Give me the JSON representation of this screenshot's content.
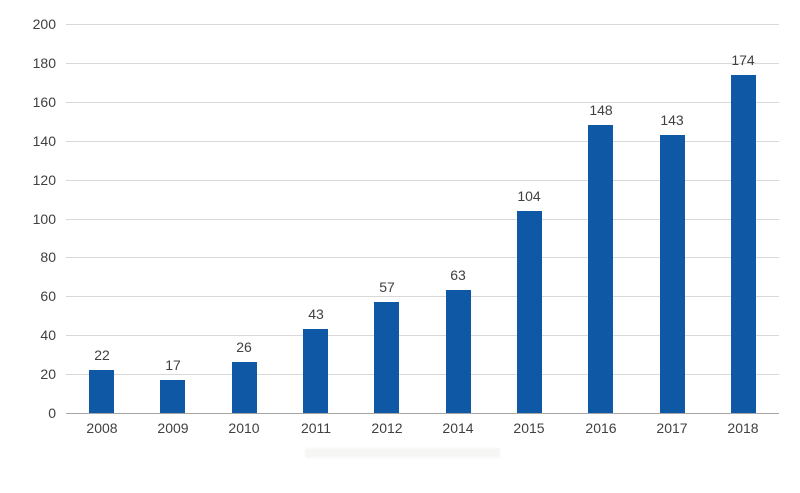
{
  "chart_data": {
    "type": "bar",
    "title": "",
    "xlabel": "",
    "ylabel": "",
    "categories": [
      "2008",
      "2009",
      "2010",
      "2011",
      "2012",
      "2014",
      "2015",
      "2016",
      "2017",
      "2018"
    ],
    "values": [
      22,
      17,
      26,
      43,
      57,
      63,
      104,
      148,
      143,
      174
    ],
    "data_labels": [
      "22",
      "17",
      "26",
      "43",
      "57",
      "63",
      "104",
      "148",
      "143",
      "174"
    ],
    "y_tick_labels": [
      "0",
      "20",
      "40",
      "60",
      "80",
      "100",
      "120",
      "140",
      "160",
      "180",
      "200"
    ],
    "ylim": [
      0,
      200
    ],
    "ytick_step": 20,
    "grid": true,
    "legend_position": "none",
    "colors": {
      "bar": "#0E58A6",
      "gridline": "#D9D9D9",
      "axis_line": "#A6A6A6",
      "text": "#404040",
      "background": "#FFFFFF"
    }
  }
}
